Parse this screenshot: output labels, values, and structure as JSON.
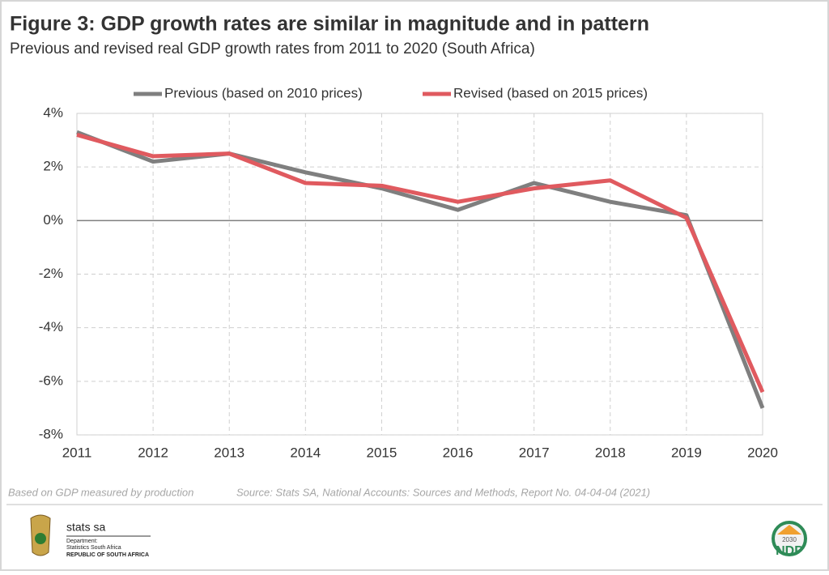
{
  "chart_data": {
    "type": "line",
    "title": "Figure 3: GDP growth rates are similar in magnitude and in pattern",
    "subtitle": "Previous and revised real GDP growth rates from 2011 to 2020 (South Africa)",
    "categories": [
      "2011",
      "2012",
      "2013",
      "2014",
      "2015",
      "2016",
      "2017",
      "2018",
      "2019",
      "2020"
    ],
    "series": [
      {
        "name": "Previous (based on 2010 prices)",
        "color": "#7f7f7f",
        "values": [
          3.3,
          2.2,
          2.5,
          1.8,
          1.2,
          0.4,
          1.4,
          0.7,
          0.2,
          -7.0
        ]
      },
      {
        "name": "Revised (based on 2015 prices)",
        "color": "#e05a5f",
        "values": [
          3.2,
          2.4,
          2.5,
          1.4,
          1.3,
          0.7,
          1.2,
          1.5,
          0.1,
          -6.4
        ]
      }
    ],
    "ylim": [
      -8,
      4
    ],
    "yticks": [
      {
        "value": -8,
        "label": "-8%"
      },
      {
        "value": -6,
        "label": "-6%"
      },
      {
        "value": -4,
        "label": "-4%"
      },
      {
        "value": -2,
        "label": "-2%"
      },
      {
        "value": 0,
        "label": "0%"
      },
      {
        "value": 2,
        "label": "2%"
      },
      {
        "value": 4,
        "label": "4%"
      }
    ],
    "grid": true,
    "legend": "top"
  },
  "notes": {
    "basis": "Based on GDP measured by production",
    "source": "Source: Stats SA, National Accounts: Sources and Methods, Report No. 04-04-04 (2021)"
  },
  "logos": {
    "stats": "stats sa",
    "department": "Department:",
    "statistics": "Statistics South Africa",
    "republic": "REPUBLIC OF SOUTH AFRICA",
    "ndp": "NDP",
    "ndp_year": "2030"
  }
}
